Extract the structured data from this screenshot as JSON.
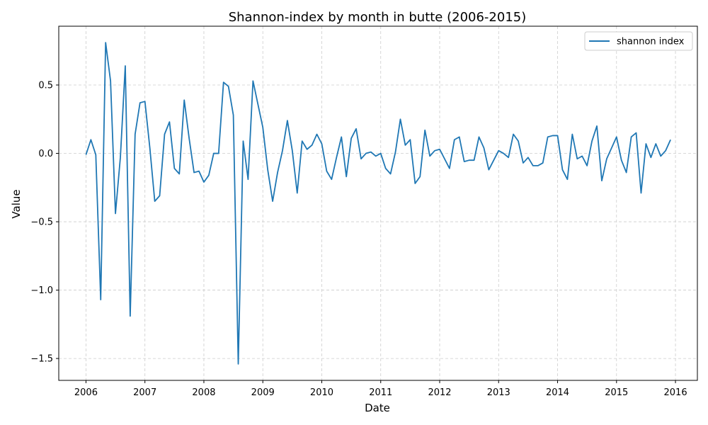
{
  "chart_data": {
    "type": "line",
    "title": "Shannon-index by month in butte (2006-2015)",
    "xlabel": "Date",
    "ylabel": "Value",
    "legend_position": "top-right",
    "grid": true,
    "xlim": [
      "2005-07-15",
      "2016-05-15"
    ],
    "ylim": [
      -1.66,
      0.93
    ],
    "x_ticks": [
      "2006",
      "2007",
      "2008",
      "2009",
      "2010",
      "2011",
      "2012",
      "2013",
      "2014",
      "2015",
      "2016"
    ],
    "y_ticks": [
      -1.5,
      -1.0,
      -0.5,
      0.0,
      0.5
    ],
    "y_tick_labels": [
      "−1.5",
      "−1.0",
      "−0.5",
      "0.0",
      "0.5"
    ],
    "colors": {
      "line": "#1f77b4",
      "grid": "#cccccc"
    },
    "series": [
      {
        "name": "shannon index",
        "x": [
          "2006-01",
          "2006-02",
          "2006-03",
          "2006-04",
          "2006-05",
          "2006-06",
          "2006-07",
          "2006-08",
          "2006-09",
          "2006-10",
          "2006-11",
          "2006-12",
          "2007-01",
          "2007-02",
          "2007-03",
          "2007-04",
          "2007-05",
          "2007-06",
          "2007-07",
          "2007-08",
          "2007-09",
          "2007-10",
          "2007-11",
          "2007-12",
          "2008-01",
          "2008-02",
          "2008-03",
          "2008-04",
          "2008-05",
          "2008-06",
          "2008-07",
          "2008-08",
          "2008-09",
          "2008-10",
          "2008-11",
          "2008-12",
          "2009-01",
          "2009-02",
          "2009-03",
          "2009-04",
          "2009-05",
          "2009-06",
          "2009-07",
          "2009-08",
          "2009-09",
          "2009-10",
          "2009-11",
          "2009-12",
          "2010-01",
          "2010-02",
          "2010-03",
          "2010-04",
          "2010-05",
          "2010-06",
          "2010-07",
          "2010-08",
          "2010-09",
          "2010-10",
          "2010-11",
          "2010-12",
          "2011-01",
          "2011-02",
          "2011-03",
          "2011-04",
          "2011-05",
          "2011-06",
          "2011-07",
          "2011-08",
          "2011-09",
          "2011-10",
          "2011-11",
          "2011-12",
          "2012-01",
          "2012-02",
          "2012-03",
          "2012-04",
          "2012-05",
          "2012-06",
          "2012-07",
          "2012-08",
          "2012-09",
          "2012-10",
          "2012-11",
          "2012-12",
          "2013-01",
          "2013-02",
          "2013-03",
          "2013-04",
          "2013-05",
          "2013-06",
          "2013-07",
          "2013-08",
          "2013-09",
          "2013-10",
          "2013-11",
          "2013-12",
          "2014-01",
          "2014-02",
          "2014-03",
          "2014-04",
          "2014-05",
          "2014-06",
          "2014-07",
          "2014-08",
          "2014-09",
          "2014-10",
          "2014-11",
          "2014-12",
          "2015-01",
          "2015-02",
          "2015-03",
          "2015-04",
          "2015-05",
          "2015-06",
          "2015-07",
          "2015-08",
          "2015-09",
          "2015-10",
          "2015-11",
          "2015-12"
        ],
        "values": [
          -0.01,
          0.1,
          -0.01,
          -1.07,
          0.81,
          0.53,
          -0.44,
          -0.03,
          0.64,
          -1.19,
          0.14,
          0.37,
          0.38,
          0.04,
          -0.35,
          -0.31,
          0.14,
          0.23,
          -0.11,
          -0.15,
          0.39,
          0.11,
          -0.14,
          -0.13,
          -0.21,
          -0.16,
          0.0,
          0.0,
          0.52,
          0.49,
          0.28,
          -1.54,
          0.09,
          -0.19,
          0.53,
          0.36,
          0.19,
          -0.12,
          -0.35,
          -0.14,
          0.02,
          0.24,
          0.02,
          -0.29,
          0.09,
          0.03,
          0.06,
          0.14,
          0.07,
          -0.13,
          -0.19,
          -0.03,
          0.12,
          -0.17,
          0.11,
          0.18,
          -0.04,
          0.0,
          0.01,
          -0.02,
          0.0,
          -0.11,
          -0.15,
          0.01,
          0.25,
          0.06,
          0.1,
          -0.22,
          -0.17,
          0.17,
          -0.02,
          0.02,
          0.03,
          -0.04,
          -0.11,
          0.1,
          0.12,
          -0.06,
          -0.05,
          -0.05,
          0.12,
          0.04,
          -0.12,
          -0.05,
          0.02,
          0.0,
          -0.03,
          0.14,
          0.09,
          -0.07,
          -0.03,
          -0.09,
          -0.09,
          -0.07,
          0.12,
          0.13,
          0.13,
          -0.12,
          -0.19,
          0.14,
          -0.04,
          -0.02,
          -0.09,
          0.09,
          0.2,
          -0.2,
          -0.04,
          0.04,
          0.12,
          -0.05,
          -0.14,
          0.12,
          0.15,
          -0.29,
          0.07,
          -0.03,
          0.07,
          -0.02,
          0.02,
          0.1
        ]
      }
    ]
  }
}
